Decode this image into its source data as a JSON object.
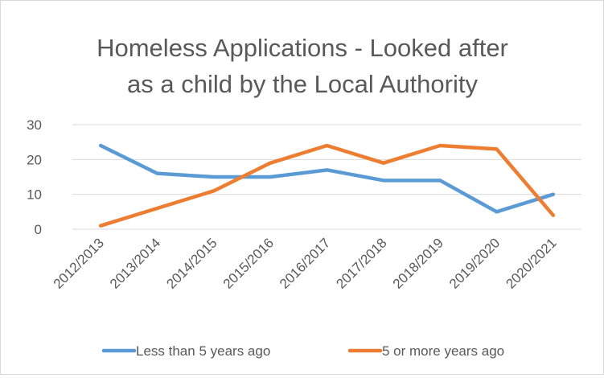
{
  "chart_data": {
    "type": "line",
    "title_lines": [
      "Homeless Applications - Looked after",
      "as a child by the Local Authority"
    ],
    "categories": [
      "2012/2013",
      "2013/2014",
      "2014/2015",
      "2015/2016",
      "2016/2017",
      "2017/2018",
      "2018/2019",
      "2019/2020",
      "2020/2021"
    ],
    "y_ticks": [
      "0",
      "10",
      "20",
      "30"
    ],
    "ylim": [
      0,
      30
    ],
    "grid": true,
    "legend_position": "bottom",
    "series": [
      {
        "name": "Less than 5 years ago",
        "color": "#5b9bd5",
        "values": [
          24,
          16,
          15,
          15,
          17,
          14,
          14,
          5,
          10
        ]
      },
      {
        "name": "5 or more years ago",
        "color": "#ed7d31",
        "values": [
          1,
          6,
          11,
          19,
          24,
          19,
          24,
          23,
          4
        ]
      }
    ]
  }
}
